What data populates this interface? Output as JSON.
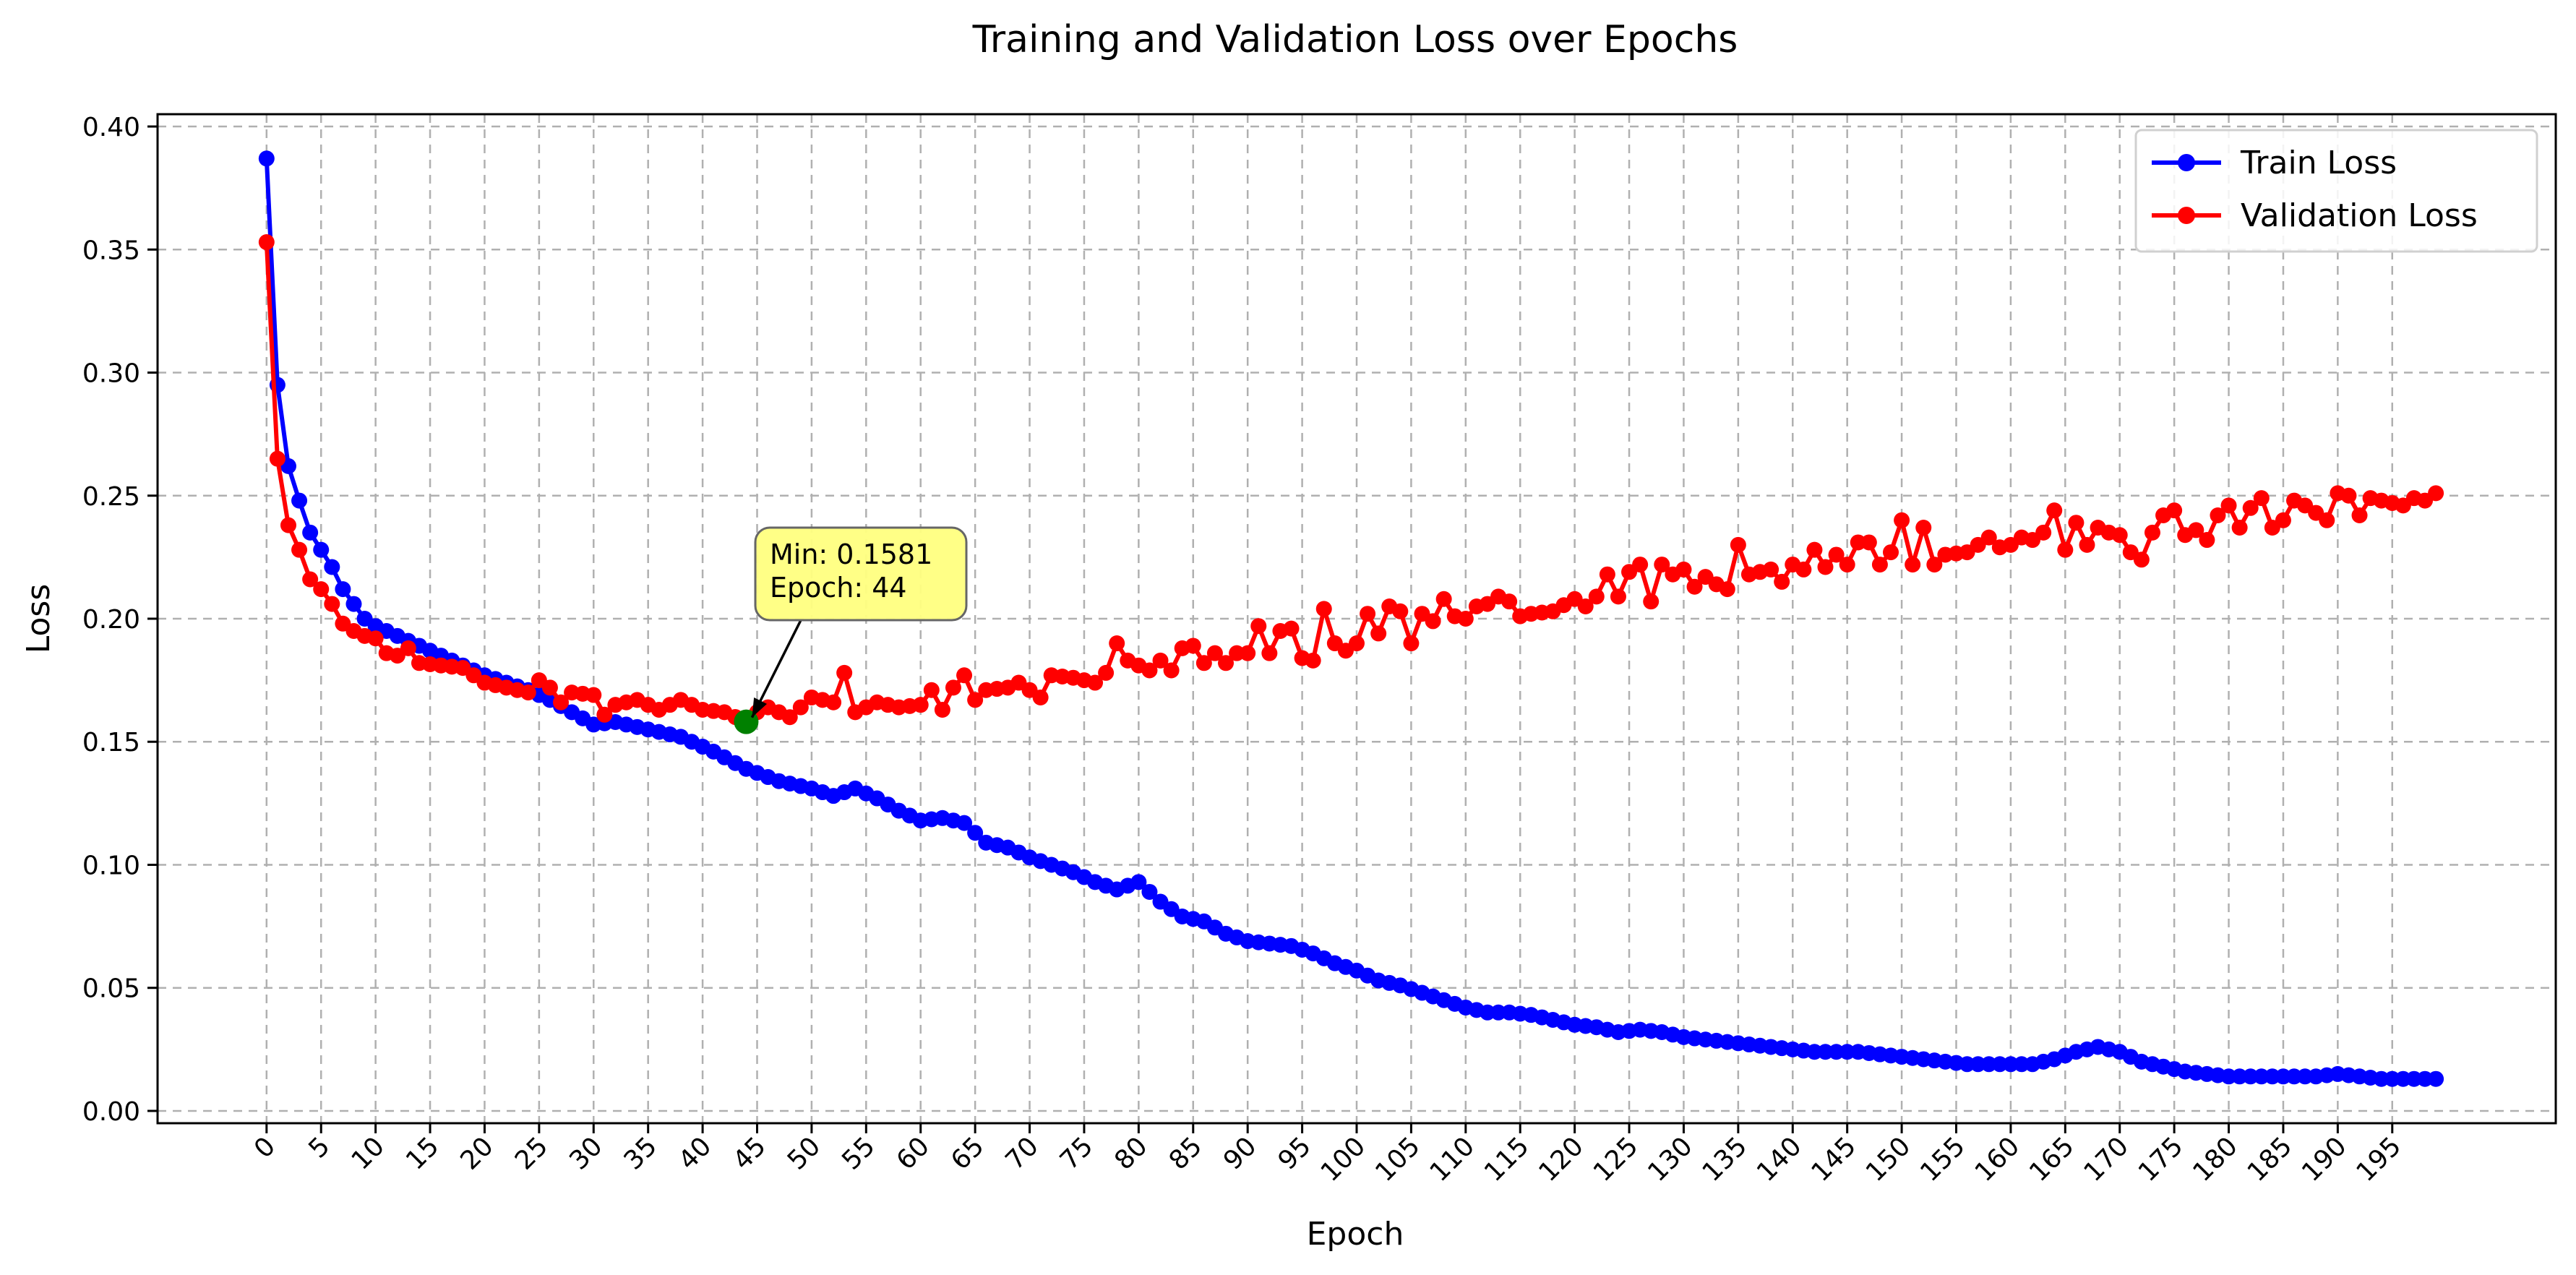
{
  "chart_data": {
    "type": "line",
    "title": "Training and Validation Loss over Epochs",
    "xlabel": "Epoch",
    "ylabel": "Loss",
    "xlim": [
      -10,
      210
    ],
    "ylim": [
      -0.005,
      0.405
    ],
    "xticks": [
      0,
      5,
      10,
      15,
      20,
      25,
      30,
      35,
      40,
      45,
      50,
      55,
      60,
      65,
      70,
      75,
      80,
      85,
      90,
      95,
      100,
      105,
      110,
      115,
      120,
      125,
      130,
      135,
      140,
      145,
      150,
      155,
      160,
      165,
      170,
      175,
      180,
      185,
      190,
      195
    ],
    "yticks": [
      0.0,
      0.05,
      0.1,
      0.15,
      0.2,
      0.25,
      0.3,
      0.35,
      0.4
    ],
    "grid": true,
    "legend_position": "top-right",
    "colors": {
      "train": "#0000ff",
      "validation": "#ff0000",
      "min_marker": "#008000",
      "annotation_fill": "#ffff80"
    },
    "annotation": {
      "x": 44,
      "y": 0.1581,
      "text_lines": [
        "Min: 0.1581",
        "Epoch: 44"
      ]
    },
    "series": [
      {
        "name": "Train Loss",
        "color": "#0000ff",
        "keypoints": [
          [
            0,
            0.387
          ],
          [
            1,
            0.295
          ],
          [
            2,
            0.262
          ],
          [
            3,
            0.248
          ],
          [
            4,
            0.235
          ],
          [
            5,
            0.228
          ],
          [
            6,
            0.221
          ],
          [
            7,
            0.212
          ],
          [
            8,
            0.206
          ],
          [
            9,
            0.2
          ],
          [
            10,
            0.197
          ],
          [
            12,
            0.193
          ],
          [
            14,
            0.189
          ],
          [
            16,
            0.185
          ],
          [
            18,
            0.181
          ],
          [
            20,
            0.177
          ],
          [
            22,
            0.174
          ],
          [
            24,
            0.171
          ],
          [
            26,
            0.167
          ],
          [
            28,
            0.162
          ],
          [
            30,
            0.157
          ],
          [
            32,
            0.158
          ],
          [
            35,
            0.155
          ],
          [
            38,
            0.152
          ],
          [
            41,
            0.146
          ],
          [
            44,
            0.139
          ],
          [
            47,
            0.134
          ],
          [
            50,
            0.131
          ],
          [
            52,
            0.128
          ],
          [
            54,
            0.131
          ],
          [
            56,
            0.127
          ],
          [
            58,
            0.122
          ],
          [
            60,
            0.118
          ],
          [
            62,
            0.119
          ],
          [
            64,
            0.117
          ],
          [
            66,
            0.109
          ],
          [
            68,
            0.107
          ],
          [
            70,
            0.103
          ],
          [
            72,
            0.1
          ],
          [
            74,
            0.097
          ],
          [
            76,
            0.093
          ],
          [
            78,
            0.09
          ],
          [
            80,
            0.093
          ],
          [
            82,
            0.085
          ],
          [
            84,
            0.079
          ],
          [
            86,
            0.077
          ],
          [
            88,
            0.072
          ],
          [
            90,
            0.069
          ],
          [
            92,
            0.068
          ],
          [
            94,
            0.067
          ],
          [
            96,
            0.064
          ],
          [
            98,
            0.06
          ],
          [
            100,
            0.057
          ],
          [
            102,
            0.053
          ],
          [
            104,
            0.051
          ],
          [
            106,
            0.048
          ],
          [
            108,
            0.045
          ],
          [
            110,
            0.042
          ],
          [
            112,
            0.04
          ],
          [
            114,
            0.04
          ],
          [
            116,
            0.039
          ],
          [
            118,
            0.037
          ],
          [
            120,
            0.035
          ],
          [
            122,
            0.034
          ],
          [
            124,
            0.032
          ],
          [
            126,
            0.033
          ],
          [
            128,
            0.032
          ],
          [
            130,
            0.03
          ],
          [
            132,
            0.029
          ],
          [
            134,
            0.028
          ],
          [
            136,
            0.027
          ],
          [
            138,
            0.026
          ],
          [
            140,
            0.025
          ],
          [
            142,
            0.024
          ],
          [
            144,
            0.024
          ],
          [
            146,
            0.024
          ],
          [
            148,
            0.023
          ],
          [
            150,
            0.022
          ],
          [
            152,
            0.021
          ],
          [
            154,
            0.02
          ],
          [
            156,
            0.019
          ],
          [
            158,
            0.019
          ],
          [
            160,
            0.019
          ],
          [
            162,
            0.019
          ],
          [
            164,
            0.021
          ],
          [
            166,
            0.024
          ],
          [
            168,
            0.026
          ],
          [
            170,
            0.024
          ],
          [
            172,
            0.02
          ],
          [
            174,
            0.018
          ],
          [
            176,
            0.016
          ],
          [
            178,
            0.015
          ],
          [
            180,
            0.014
          ],
          [
            182,
            0.014
          ],
          [
            184,
            0.014
          ],
          [
            186,
            0.014
          ],
          [
            188,
            0.014
          ],
          [
            190,
            0.015
          ],
          [
            192,
            0.014
          ],
          [
            194,
            0.013
          ],
          [
            196,
            0.013
          ],
          [
            198,
            0.013
          ],
          [
            199,
            0.013
          ]
        ]
      },
      {
        "name": "Validation Loss",
        "color": "#ff0000",
        "keypoints": [
          [
            0,
            0.353
          ],
          [
            1,
            0.265
          ],
          [
            2,
            0.238
          ],
          [
            3,
            0.228
          ],
          [
            4,
            0.216
          ],
          [
            5,
            0.212
          ],
          [
            6,
            0.206
          ],
          [
            7,
            0.198
          ],
          [
            8,
            0.195
          ],
          [
            9,
            0.193
          ],
          [
            10,
            0.192
          ],
          [
            11,
            0.186
          ],
          [
            12,
            0.185
          ],
          [
            13,
            0.188
          ],
          [
            14,
            0.182
          ],
          [
            16,
            0.181
          ],
          [
            18,
            0.18
          ],
          [
            20,
            0.174
          ],
          [
            22,
            0.172
          ],
          [
            24,
            0.17
          ],
          [
            25,
            0.175
          ],
          [
            26,
            0.172
          ],
          [
            27,
            0.166
          ],
          [
            28,
            0.17
          ],
          [
            30,
            0.169
          ],
          [
            31,
            0.161
          ],
          [
            32,
            0.165
          ],
          [
            34,
            0.167
          ],
          [
            36,
            0.163
          ],
          [
            38,
            0.167
          ],
          [
            40,
            0.163
          ],
          [
            42,
            0.162
          ],
          [
            44,
            0.1581
          ],
          [
            45,
            0.162
          ],
          [
            46,
            0.164
          ],
          [
            48,
            0.16
          ],
          [
            50,
            0.168
          ],
          [
            52,
            0.166
          ],
          [
            53,
            0.178
          ],
          [
            54,
            0.162
          ],
          [
            56,
            0.166
          ],
          [
            58,
            0.164
          ],
          [
            60,
            0.165
          ],
          [
            61,
            0.171
          ],
          [
            62,
            0.163
          ],
          [
            63,
            0.172
          ],
          [
            64,
            0.177
          ],
          [
            65,
            0.167
          ],
          [
            66,
            0.171
          ],
          [
            68,
            0.172
          ],
          [
            69,
            0.174
          ],
          [
            70,
            0.171
          ],
          [
            71,
            0.168
          ],
          [
            72,
            0.177
          ],
          [
            74,
            0.176
          ],
          [
            76,
            0.174
          ],
          [
            77,
            0.178
          ],
          [
            78,
            0.19
          ],
          [
            79,
            0.183
          ],
          [
            80,
            0.181
          ],
          [
            81,
            0.179
          ],
          [
            82,
            0.183
          ],
          [
            83,
            0.179
          ],
          [
            84,
            0.188
          ],
          [
            85,
            0.189
          ],
          [
            86,
            0.182
          ],
          [
            87,
            0.186
          ],
          [
            88,
            0.182
          ],
          [
            89,
            0.186
          ],
          [
            90,
            0.186
          ],
          [
            91,
            0.197
          ],
          [
            92,
            0.186
          ],
          [
            93,
            0.195
          ],
          [
            94,
            0.196
          ],
          [
            95,
            0.184
          ],
          [
            96,
            0.183
          ],
          [
            97,
            0.204
          ],
          [
            98,
            0.19
          ],
          [
            99,
            0.187
          ],
          [
            100,
            0.19
          ],
          [
            101,
            0.202
          ],
          [
            102,
            0.194
          ],
          [
            103,
            0.205
          ],
          [
            104,
            0.203
          ],
          [
            105,
            0.19
          ],
          [
            106,
            0.202
          ],
          [
            107,
            0.199
          ],
          [
            108,
            0.208
          ],
          [
            109,
            0.201
          ],
          [
            110,
            0.2
          ],
          [
            111,
            0.205
          ],
          [
            112,
            0.206
          ],
          [
            113,
            0.209
          ],
          [
            114,
            0.207
          ],
          [
            115,
            0.201
          ],
          [
            116,
            0.202
          ],
          [
            118,
            0.203
          ],
          [
            120,
            0.208
          ],
          [
            121,
            0.205
          ],
          [
            122,
            0.209
          ],
          [
            123,
            0.218
          ],
          [
            124,
            0.209
          ],
          [
            125,
            0.219
          ],
          [
            126,
            0.222
          ],
          [
            127,
            0.207
          ],
          [
            128,
            0.222
          ],
          [
            129,
            0.218
          ],
          [
            130,
            0.22
          ],
          [
            131,
            0.213
          ],
          [
            132,
            0.217
          ],
          [
            133,
            0.214
          ],
          [
            134,
            0.212
          ],
          [
            135,
            0.23
          ],
          [
            136,
            0.218
          ],
          [
            137,
            0.219
          ],
          [
            138,
            0.22
          ],
          [
            139,
            0.215
          ],
          [
            140,
            0.222
          ],
          [
            141,
            0.22
          ],
          [
            142,
            0.228
          ],
          [
            143,
            0.221
          ],
          [
            144,
            0.226
          ],
          [
            145,
            0.222
          ],
          [
            146,
            0.231
          ],
          [
            147,
            0.231
          ],
          [
            148,
            0.222
          ],
          [
            149,
            0.227
          ],
          [
            150,
            0.24
          ],
          [
            151,
            0.222
          ],
          [
            152,
            0.237
          ],
          [
            153,
            0.222
          ],
          [
            154,
            0.226
          ],
          [
            156,
            0.227
          ],
          [
            158,
            0.233
          ],
          [
            159,
            0.229
          ],
          [
            160,
            0.23
          ],
          [
            161,
            0.233
          ],
          [
            162,
            0.232
          ],
          [
            163,
            0.235
          ],
          [
            164,
            0.244
          ],
          [
            165,
            0.228
          ],
          [
            166,
            0.239
          ],
          [
            167,
            0.23
          ],
          [
            168,
            0.237
          ],
          [
            169,
            0.235
          ],
          [
            170,
            0.234
          ],
          [
            171,
            0.227
          ],
          [
            172,
            0.224
          ],
          [
            173,
            0.235
          ],
          [
            174,
            0.242
          ],
          [
            175,
            0.244
          ],
          [
            176,
            0.234
          ],
          [
            177,
            0.236
          ],
          [
            178,
            0.232
          ],
          [
            179,
            0.242
          ],
          [
            180,
            0.246
          ],
          [
            181,
            0.237
          ],
          [
            182,
            0.245
          ],
          [
            183,
            0.249
          ],
          [
            184,
            0.237
          ],
          [
            185,
            0.24
          ],
          [
            186,
            0.248
          ],
          [
            187,
            0.246
          ],
          [
            188,
            0.243
          ],
          [
            189,
            0.24
          ],
          [
            190,
            0.251
          ],
          [
            191,
            0.25
          ],
          [
            192,
            0.242
          ],
          [
            193,
            0.249
          ],
          [
            194,
            0.248
          ],
          [
            195,
            0.247
          ],
          [
            196,
            0.246
          ],
          [
            197,
            0.249
          ],
          [
            198,
            0.248
          ],
          [
            199,
            0.251
          ]
        ]
      }
    ]
  }
}
